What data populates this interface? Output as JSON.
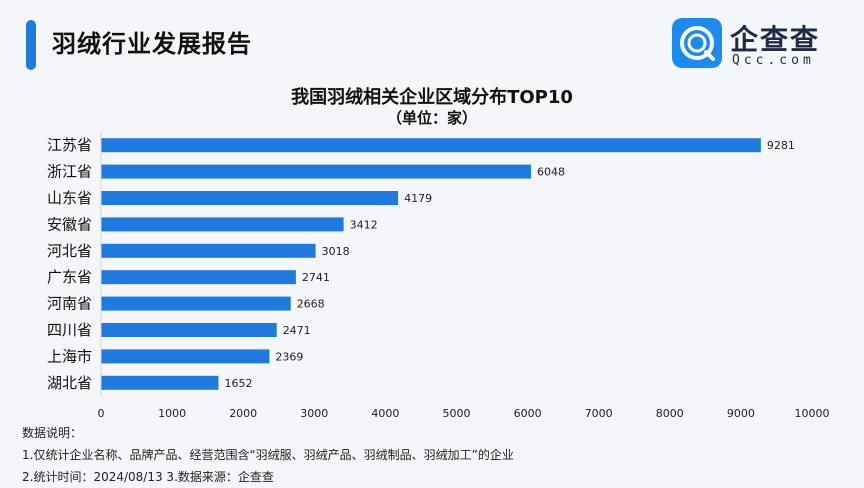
{
  "header": {
    "title": "羽绒行业发展报告"
  },
  "logo": {
    "name": "企查查",
    "domain": "Qcc.com"
  },
  "chart_data": {
    "type": "bar",
    "orientation": "horizontal",
    "title": "我国羽绒相关企业区域分布TOP10",
    "subtitle": "（单位：家）",
    "categories": [
      "江苏省",
      "浙江省",
      "山东省",
      "安徽省",
      "河北省",
      "广东省",
      "河南省",
      "四川省",
      "上海市",
      "湖北省"
    ],
    "values": [
      9281,
      6048,
      4179,
      3412,
      3018,
      2741,
      2668,
      2471,
      2369,
      1652
    ],
    "xlim": [
      0,
      10000
    ],
    "xticks": [
      0,
      1000,
      2000,
      3000,
      4000,
      5000,
      6000,
      7000,
      8000,
      9000,
      10000
    ],
    "bar_color": "#1f7ae0",
    "grid": false,
    "legend": "none"
  },
  "notes": {
    "heading": "数据说明：",
    "line1": "1.仅统计企业名称、品牌产品、经营范围含“羽绒服、羽绒产品、羽绒制品、羽绒加工”的企业",
    "line2": "2.统计时间：2024/08/13   3.数据来源：企查查"
  }
}
